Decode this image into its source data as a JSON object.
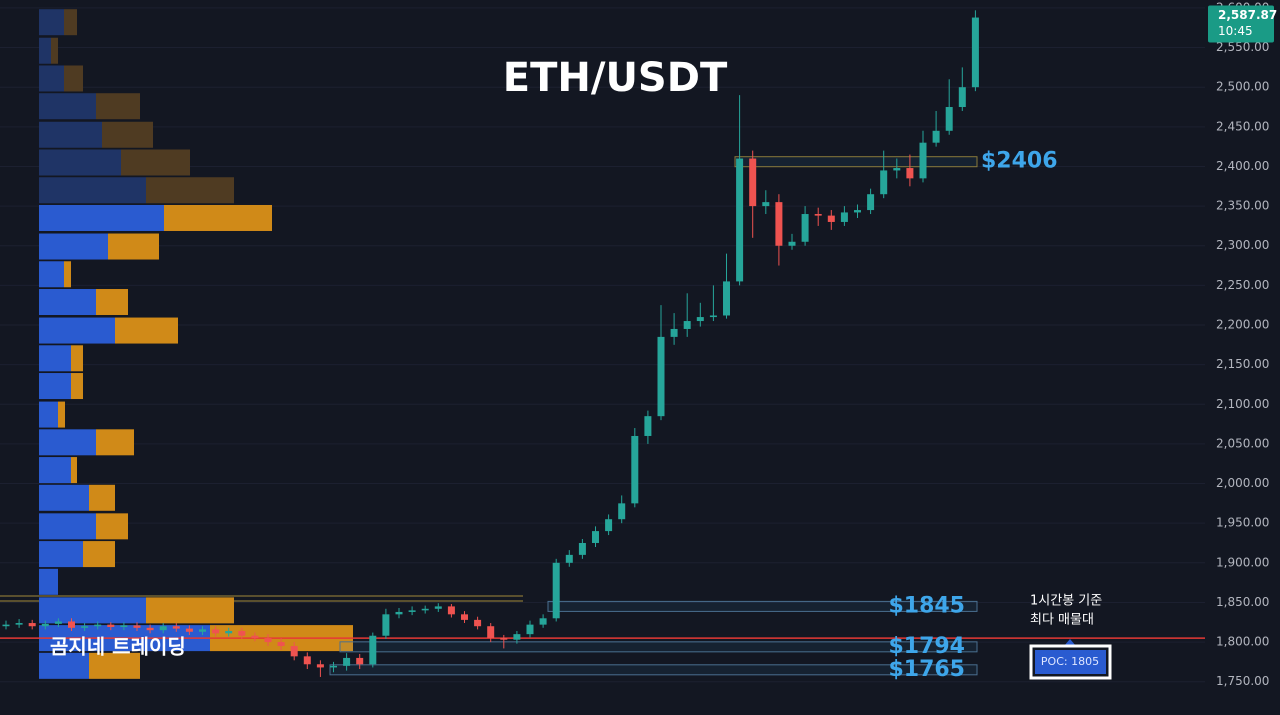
{
  "chart_data": {
    "type": "candlestick",
    "title": "ETH/USDT",
    "watermark": "곰지네 트레이딩",
    "up_color": "#26a69a",
    "down_color": "#ef5350",
    "ylim": [
      1708,
      2610
    ],
    "yticks": [
      {
        "value": 1750,
        "label": "1,750.00"
      },
      {
        "value": 1800,
        "label": "1,800.00"
      },
      {
        "value": 1850,
        "label": "1,850.00"
      },
      {
        "value": 1900,
        "label": "1,900.00"
      },
      {
        "value": 1950,
        "label": "1,950.00"
      },
      {
        "value": 2000,
        "label": "2,000.00"
      },
      {
        "value": 2050,
        "label": "2,050.00"
      },
      {
        "value": 2100,
        "label": "2,100.00"
      },
      {
        "value": 2150,
        "label": "2,150.00"
      },
      {
        "value": 2200,
        "label": "2,200.00"
      },
      {
        "value": 2250,
        "label": "2,250.00"
      },
      {
        "value": 2300,
        "label": "2,300.00"
      },
      {
        "value": 2350,
        "label": "2,350.00"
      },
      {
        "value": 2400,
        "label": "2,400.00"
      },
      {
        "value": 2450,
        "label": "2,450.00"
      },
      {
        "value": 2500,
        "label": "2,500.00"
      },
      {
        "value": 2550,
        "label": "2,550.00"
      },
      {
        "value": 2600,
        "label": "2,600.00"
      }
    ],
    "grid": true,
    "open": [
      1820,
      1822,
      1824,
      1820,
      1823,
      1826,
      1818,
      1820,
      1822,
      1819,
      1821,
      1818,
      1815,
      1820,
      1817,
      1813,
      1816,
      1811,
      1814,
      1808,
      1805,
      1800,
      1795,
      1782,
      1772,
      1768,
      1770,
      1780,
      1772,
      1808,
      1835,
      1838,
      1840,
      1842,
      1845,
      1835,
      1828,
      1820,
      1805,
      1803,
      1810,
      1822,
      1830,
      1900,
      1910,
      1925,
      1940,
      1955,
      1975,
      2060,
      2085,
      2185,
      2195,
      2205,
      2210,
      2212,
      2255,
      2410,
      2350,
      2355,
      2300,
      2305,
      2340,
      2338,
      2330,
      2342,
      2345,
      2365,
      2395,
      2398,
      2385,
      2430,
      2445,
      2475,
      2500
    ],
    "high": [
      1827,
      1829,
      1828,
      1827,
      1830,
      1830,
      1824,
      1826,
      1825,
      1825,
      1825,
      1822,
      1824,
      1824,
      1821,
      1820,
      1820,
      1818,
      1818,
      1812,
      1810,
      1805,
      1800,
      1787,
      1777,
      1775,
      1786,
      1785,
      1812,
      1842,
      1843,
      1845,
      1846,
      1849,
      1848,
      1839,
      1832,
      1824,
      1809,
      1814,
      1827,
      1835,
      1905,
      1916,
      1930,
      1946,
      1961,
      1985,
      2070,
      2092,
      2225,
      2215,
      2240,
      2228,
      2250,
      2290,
      2490,
      2420,
      2370,
      2365,
      2315,
      2350,
      2348,
      2345,
      2350,
      2352,
      2372,
      2420,
      2410,
      2415,
      2445,
      2470,
      2510,
      2525,
      2597
    ],
    "low": [
      1816,
      1818,
      1816,
      1816,
      1819,
      1814,
      1814,
      1816,
      1815,
      1815,
      1814,
      1811,
      1811,
      1813,
      1809,
      1809,
      1807,
      1807,
      1804,
      1801,
      1795,
      1790,
      1777,
      1766,
      1756,
      1762,
      1764,
      1766,
      1768,
      1804,
      1830,
      1834,
      1836,
      1838,
      1831,
      1824,
      1816,
      1800,
      1792,
      1798,
      1806,
      1818,
      1826,
      1895,
      1905,
      1920,
      1935,
      1950,
      1970,
      2050,
      2080,
      2175,
      2185,
      2198,
      2205,
      2208,
      2250,
      2310,
      2340,
      2275,
      2295,
      2300,
      2325,
      2320,
      2325,
      2335,
      2340,
      2360,
      2385,
      2375,
      2380,
      2425,
      2440,
      2470,
      2495
    ],
    "close": [
      1822,
      1824,
      1820,
      1823,
      1826,
      1818,
      1820,
      1822,
      1819,
      1821,
      1818,
      1815,
      1820,
      1817,
      1813,
      1816,
      1811,
      1814,
      1808,
      1805,
      1800,
      1795,
      1782,
      1772,
      1768,
      1770,
      1780,
      1772,
      1808,
      1835,
      1838,
      1840,
      1842,
      1845,
      1835,
      1828,
      1820,
      1805,
      1803,
      1810,
      1822,
      1830,
      1900,
      1910,
      1925,
      1940,
      1955,
      1975,
      2060,
      2085,
      2185,
      2195,
      2205,
      2210,
      2212,
      2255,
      2410,
      2350,
      2355,
      2300,
      2305,
      2340,
      2338,
      2330,
      2342,
      2345,
      2365,
      2395,
      2398,
      2385,
      2430,
      2445,
      2475,
      2500,
      2587.87
    ],
    "volume_profile": {
      "buy_color": "#2a5bd0",
      "sell_color": "#d08a18",
      "buy_color_dim": "#1f3466",
      "sell_color_dim": "#4f3b22",
      "prices": [
        2582,
        2546,
        2511,
        2476,
        2440,
        2405,
        2370,
        2335,
        2299,
        2264,
        2229,
        2193,
        2158,
        2123,
        2087,
        2052,
        2017,
        1982,
        1946,
        1911,
        1876,
        1840,
        1805,
        1770
      ],
      "buy": [
        25,
        12,
        25,
        57,
        63,
        82,
        107,
        125,
        69,
        25,
        57,
        76,
        32,
        32,
        19,
        57,
        32,
        50,
        57,
        44,
        19,
        107,
        171,
        50
      ],
      "sell": [
        13,
        7,
        19,
        44,
        51,
        69,
        88,
        108,
        51,
        7,
        32,
        63,
        12,
        12,
        7,
        38,
        6,
        26,
        32,
        32,
        0,
        88,
        143,
        51
      ],
      "dim": [
        true,
        true,
        true,
        true,
        true,
        true,
        true,
        false,
        false,
        false,
        false,
        false,
        false,
        false,
        false,
        false,
        false,
        false,
        false,
        false,
        false,
        false,
        false,
        false
      ]
    },
    "levels": [
      {
        "value": 2406,
        "label": "$2406"
      },
      {
        "value": 1845,
        "label": "$1845"
      },
      {
        "value": 1794,
        "label": "$1794"
      },
      {
        "value": 1765,
        "label": "$1765"
      }
    ],
    "level_color": "#3ea6ea",
    "poc": {
      "value": 1805,
      "label": "POC: 1805",
      "color": "#e53935"
    },
    "annotation": [
      "1시간봉 기준",
      "최다 매물대"
    ],
    "last_price": {
      "label": "2,587.87",
      "time": "10:45",
      "color": "#1a9b86"
    }
  }
}
